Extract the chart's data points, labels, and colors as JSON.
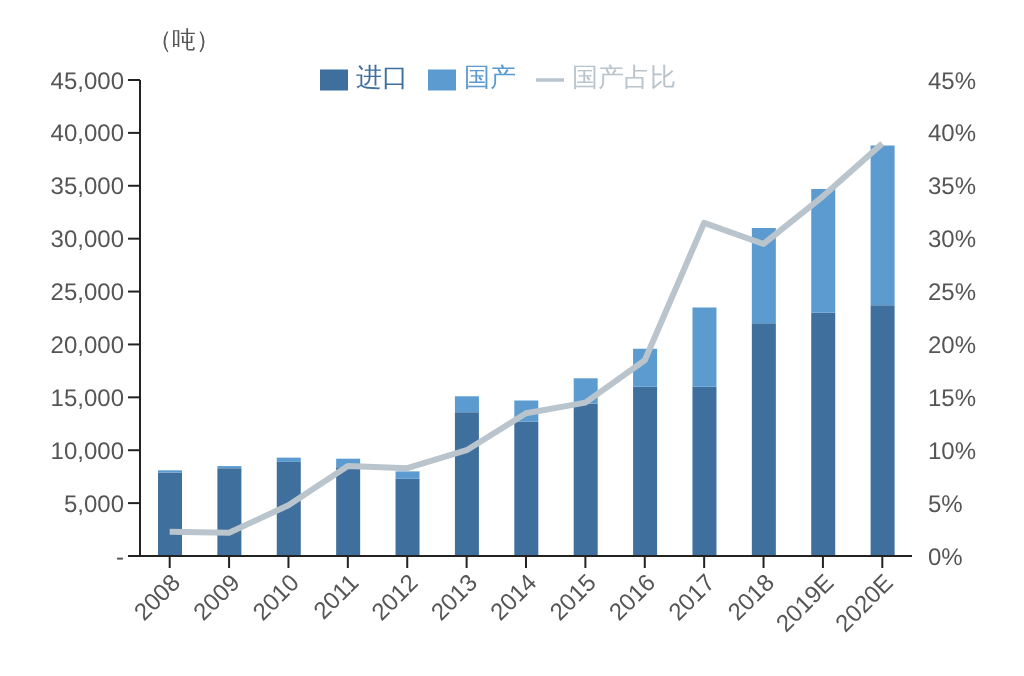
{
  "chart_data": {
    "type": "bar",
    "stacked": true,
    "ylabel": "（吨）",
    "categories": [
      "2008",
      "2009",
      "2010",
      "2011",
      "2012",
      "2013",
      "2014",
      "2015",
      "2016",
      "2017",
      "2018",
      "2019E",
      "2020E"
    ],
    "series": [
      {
        "name": "进口",
        "color": "#3f6f9c",
        "values": [
          7900,
          8300,
          8900,
          8400,
          7300,
          13600,
          12700,
          14400,
          16000,
          16000,
          22000,
          23000,
          23700
        ]
      },
      {
        "name": "国产",
        "color": "#5b9bd0",
        "values": [
          200,
          200,
          400,
          800,
          700,
          1500,
          2000,
          2400,
          3600,
          7500,
          9000,
          11700,
          15100
        ]
      },
      {
        "name": "国产占比",
        "type": "line",
        "axis": "y2",
        "color": "#b9c4cc",
        "values": [
          2.3,
          2.2,
          4.8,
          8.5,
          8.3,
          10,
          13.5,
          14.5,
          18.5,
          31.5,
          29.5,
          34,
          39
        ]
      }
    ],
    "ylim": [
      0,
      45000
    ],
    "yticks": [
      {
        "value": 0,
        "label": "-"
      },
      {
        "value": 5000,
        "label": "5,000"
      },
      {
        "value": 10000,
        "label": "10,000"
      },
      {
        "value": 15000,
        "label": "15,000"
      },
      {
        "value": 20000,
        "label": "20,000"
      },
      {
        "value": 25000,
        "label": "25,000"
      },
      {
        "value": 30000,
        "label": "30,000"
      },
      {
        "value": 35000,
        "label": "35,000"
      },
      {
        "value": 40000,
        "label": "40,000"
      },
      {
        "value": 45000,
        "label": "45,000"
      }
    ],
    "y2lim": [
      0,
      45
    ],
    "y2ticks": [
      {
        "value": 0,
        "label": "0%"
      },
      {
        "value": 5,
        "label": "5%"
      },
      {
        "value": 10,
        "label": "10%"
      },
      {
        "value": 15,
        "label": "15%"
      },
      {
        "value": 20,
        "label": "20%"
      },
      {
        "value": 25,
        "label": "25%"
      },
      {
        "value": 30,
        "label": "30%"
      },
      {
        "value": 35,
        "label": "35%"
      },
      {
        "value": 40,
        "label": "40%"
      },
      {
        "value": 45,
        "label": "45%"
      }
    ],
    "legend": "top",
    "grid": false,
    "marker": "none"
  }
}
